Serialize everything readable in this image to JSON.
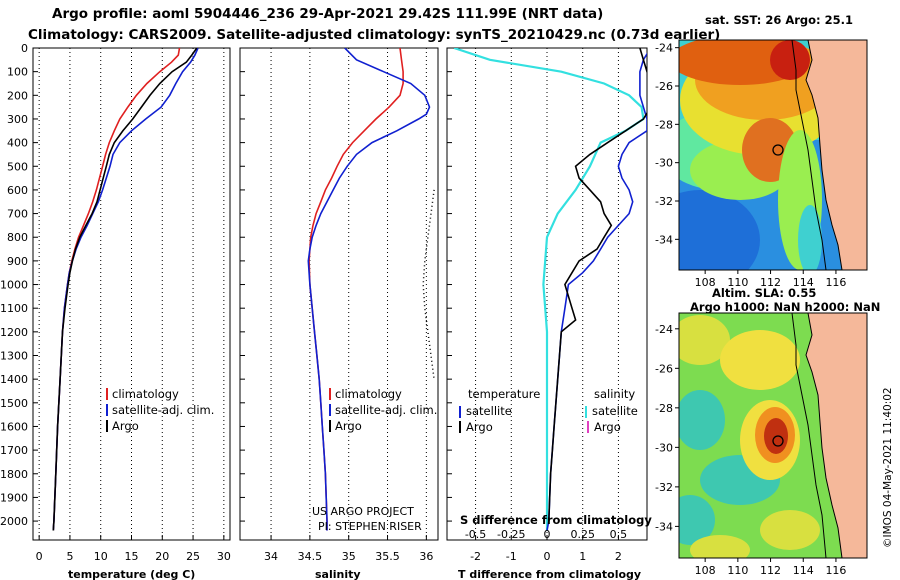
{
  "title": {
    "line1": "Argo profile: aoml 5904446_236 29-Apr-2021 29.42S 111.99E (NRT data)",
    "line2": "Climatology: CARS2009. Satellite-adjusted climatology: synTS_20210429.nc (0.73d earlier)"
  },
  "colors": {
    "climatology": "#e02020",
    "satellite": "#1020d0",
    "argo": "#000000",
    "sat_salinity": "#33e0e0",
    "argo_salinity": "#e040c0"
  },
  "depth_axis": {
    "ticks": [
      "0",
      "100",
      "200",
      "300",
      "400",
      "500",
      "600",
      "700",
      "800",
      "900",
      "1000",
      "1100",
      "1200",
      "1300",
      "1400",
      "1500",
      "1600",
      "1700",
      "1800",
      "1900",
      "2000"
    ]
  },
  "chart_data": [
    {
      "type": "line",
      "title": "",
      "xlabel": "temperature (deg C)",
      "ylabel": "depth (dbar)",
      "xlim": [
        -1,
        31
      ],
      "ylim": [
        2080,
        0
      ],
      "xticks": [
        "0",
        "5",
        "10",
        "15",
        "20",
        "25",
        "30"
      ],
      "legend": [
        "climatology",
        "satellite-adj. clim.",
        "Argo"
      ],
      "series": [
        {
          "name": "climatology",
          "depth": [
            0,
            30,
            60,
            100,
            150,
            200,
            250,
            300,
            350,
            400,
            450,
            500,
            550,
            600,
            650,
            700,
            750,
            800,
            850,
            900,
            950,
            1000,
            1100,
            1200,
            1400,
            1600,
            1800,
            2000,
            2040
          ],
          "values": [
            22.8,
            22.6,
            21.5,
            19.6,
            17.5,
            15.8,
            14.4,
            13.1,
            12.2,
            11.4,
            10.8,
            10.3,
            9.8,
            9.3,
            8.7,
            8.0,
            7.2,
            6.4,
            5.8,
            5.3,
            4.9,
            4.6,
            4.1,
            3.8,
            3.4,
            3.0,
            2.7,
            2.4,
            2.3
          ]
        },
        {
          "name": "satellite-adj. clim.",
          "depth": [
            0,
            30,
            60,
            100,
            150,
            200,
            250,
            300,
            350,
            400,
            450,
            500,
            550,
            600,
            650,
            700,
            750,
            800,
            850,
            900,
            950,
            1000,
            1100,
            1200,
            1400,
            1600,
            1800,
            2000,
            2040
          ],
          "values": [
            25.8,
            25.3,
            24.6,
            23.3,
            22.2,
            21.2,
            19.8,
            17.3,
            15.0,
            13.1,
            12.0,
            11.5,
            10.9,
            10.3,
            9.6,
            8.7,
            7.8,
            6.8,
            6.0,
            5.4,
            4.9,
            4.6,
            4.1,
            3.8,
            3.4,
            3.0,
            2.7,
            2.4,
            2.3
          ]
        },
        {
          "name": "Argo",
          "depth": [
            0,
            30,
            60,
            100,
            150,
            200,
            250,
            300,
            350,
            400,
            450,
            500,
            550,
            600,
            650,
            700,
            750,
            800,
            850,
            900,
            950,
            1000,
            1100,
            1200,
            1400,
            1600,
            1800,
            2000,
            2040
          ],
          "values": [
            25.6,
            24.8,
            23.9,
            21.6,
            19.6,
            18.0,
            16.6,
            15.2,
            13.6,
            12.2,
            11.4,
            10.9,
            10.4,
            9.9,
            9.4,
            8.6,
            7.6,
            6.6,
            5.9,
            5.4,
            5.0,
            4.7,
            4.2,
            3.8,
            3.4,
            3.0,
            2.7,
            2.4,
            2.3
          ]
        }
      ]
    },
    {
      "type": "line",
      "title": "",
      "xlabel": "salinity",
      "xlim": [
        33.6,
        36.15
      ],
      "ylim": [
        2080,
        0
      ],
      "xticks": [
        "34",
        "34.5",
        "35",
        "35.5",
        "36"
      ],
      "legend": [
        "climatology",
        "satellite-adj. clim.",
        "Argo"
      ],
      "annotation": [
        "US ARGO PROJECT",
        "PI: STEPHEN RISER"
      ],
      "series": [
        {
          "name": "climatology",
          "depth": [
            0,
            50,
            100,
            150,
            200,
            250,
            300,
            350,
            400,
            450,
            500,
            550,
            600,
            650,
            700,
            750,
            800,
            850,
            900,
            1000,
            1100,
            1200,
            1300,
            1400,
            1500,
            1600,
            1700,
            1800,
            1900,
            2000,
            2040
          ],
          "values": [
            35.66,
            35.68,
            35.7,
            35.7,
            35.66,
            35.52,
            35.35,
            35.2,
            35.05,
            34.93,
            34.85,
            34.78,
            34.7,
            34.64,
            34.58,
            34.54,
            34.51,
            34.5,
            34.49,
            34.5,
            34.53,
            34.56,
            34.59,
            34.62,
            34.64,
            34.66,
            34.68,
            34.7,
            34.71,
            34.72,
            34.72
          ]
        },
        {
          "name": "satellite-adj. clim.",
          "depth": [
            0,
            50,
            100,
            150,
            200,
            250,
            280,
            300,
            350,
            400,
            450,
            500,
            550,
            600,
            650,
            700,
            750,
            800,
            850,
            900,
            1000,
            1100,
            1200,
            1300,
            1400,
            1500,
            1600,
            1700,
            1800,
            1900,
            2000,
            2040
          ],
          "values": [
            34.95,
            35.1,
            35.45,
            35.8,
            35.98,
            36.04,
            36.0,
            35.9,
            35.62,
            35.3,
            35.1,
            34.98,
            34.88,
            34.8,
            34.72,
            34.64,
            34.58,
            34.53,
            34.5,
            34.48,
            34.5,
            34.53,
            34.56,
            34.59,
            34.62,
            34.64,
            34.66,
            34.68,
            34.7,
            34.71,
            34.72,
            34.72
          ]
        }
      ]
    },
    {
      "type": "line",
      "title": "",
      "xlabel": "T difference from climatology",
      "xlabel_top": "S difference from climatology",
      "xlim": [
        -2.8,
        2.8
      ],
      "ylim": [
        2080,
        0
      ],
      "xticks": [
        "-2",
        "-1",
        "0",
        "1",
        "2"
      ],
      "xticks_top": [
        "-0.5",
        "-0.25",
        "0",
        "0.25",
        "0.5"
      ],
      "legend": [
        "temperature",
        "satellite",
        "Argo",
        "salinity",
        "satellite",
        "Argo"
      ],
      "series": [
        {
          "name": "salinity satellite (T-scale)",
          "depth": [
            0,
            50,
            100,
            150,
            200,
            250,
            300,
            350,
            400,
            500,
            600,
            700,
            800,
            900,
            1000,
            1100,
            1200,
            1400,
            1600,
            1800,
            2000,
            2040
          ],
          "values": [
            -2.6,
            -1.6,
            0.4,
            1.6,
            2.3,
            2.65,
            2.7,
            2.2,
            1.5,
            1.2,
            0.8,
            0.3,
            0.0,
            -0.05,
            -0.1,
            -0.05,
            0.0,
            0.0,
            0.0,
            0.0,
            0.0,
            0.0
          ]
        },
        {
          "name": "temperature satellite",
          "depth": [
            0,
            50,
            100,
            200,
            300,
            350,
            400,
            450,
            500,
            550,
            600,
            650,
            700,
            750,
            800,
            850,
            900,
            950,
            1000,
            1100,
            1200,
            1400,
            1600,
            1800,
            2000,
            2040
          ],
          "values": [
            2.9,
            2.7,
            2.6,
            2.6,
            2.8,
            2.8,
            2.3,
            2.1,
            2.0,
            2.1,
            2.3,
            2.4,
            2.3,
            2.0,
            1.7,
            1.5,
            1.3,
            1.0,
            0.6,
            0.5,
            0.4,
            0.3,
            0.2,
            0.1,
            0.05,
            0.0
          ]
        },
        {
          "name": "temperature Argo",
          "depth": [
            0,
            50,
            100,
            150,
            200,
            250,
            300,
            350,
            400,
            450,
            500,
            550,
            600,
            650,
            700,
            750,
            800,
            850,
            900,
            950,
            1000,
            1100,
            1150,
            1200,
            1300,
            1400,
            1500,
            1600,
            1700,
            1800,
            2000
          ],
          "values": [
            2.6,
            2.7,
            2.8,
            2.9,
            3.0,
            2.9,
            2.7,
            2.2,
            1.7,
            1.2,
            0.8,
            0.9,
            1.2,
            1.5,
            1.6,
            1.8,
            1.6,
            1.4,
            0.9,
            0.7,
            0.5,
            0.7,
            0.8,
            0.4,
            0.35,
            0.3,
            0.25,
            0.2,
            0.15,
            0.1,
            0.05
          ]
        }
      ]
    }
  ],
  "map_sst": {
    "title": "sat. SST: 26 Argo: 25.1",
    "lat_ticks": [
      "-24",
      "-26",
      "-28",
      "-30",
      "-32",
      "-34"
    ],
    "lon_ticks": [
      "108",
      "110",
      "112",
      "114",
      "116"
    ]
  },
  "map_sla": {
    "title_line1": "Altim. SLA: 0.55",
    "title_line2": "Argo h1000: NaN h2000: NaN",
    "lat_ticks": [
      "-24",
      "-26",
      "-28",
      "-30",
      "-32",
      "-34"
    ],
    "lon_ticks": [
      "108",
      "110",
      "112",
      "114",
      "116"
    ]
  },
  "credit": "©IMOS 04-May-2021 11:40:02"
}
